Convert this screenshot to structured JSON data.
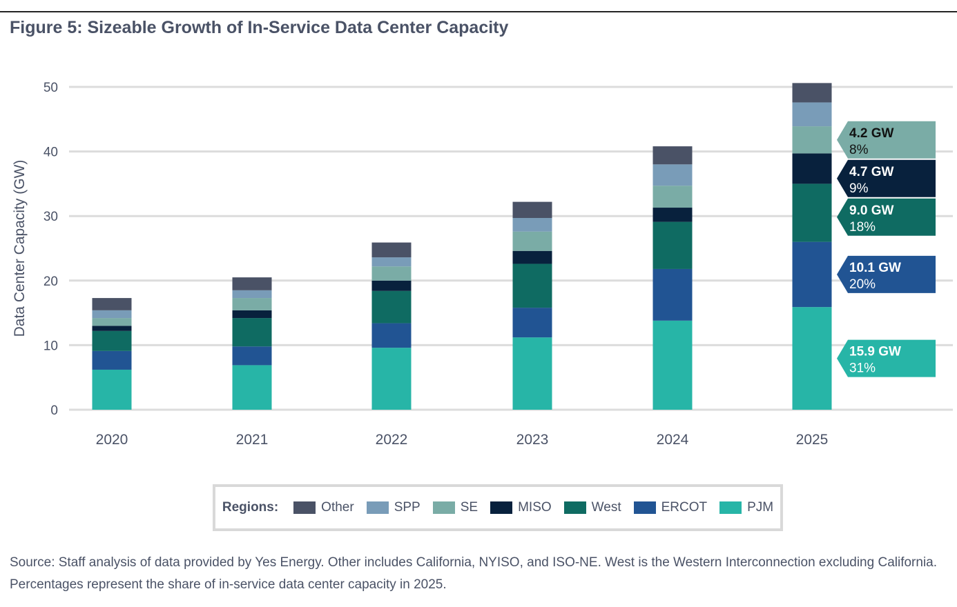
{
  "title": "Figure 5: Sizeable Growth of In-Service Data Center Capacity",
  "source": "Source: Staff analysis of data provided by Yes Energy. Other includes California, NYISO, and ISO-NE. West is the Western Interconnection excluding California. Percentages represent the share of in-service data center capacity in 2025.",
  "legend": {
    "label": "Regions:",
    "items": [
      "Other",
      "SPP",
      "SE",
      "MISO",
      "West",
      "ERCOT",
      "PJM"
    ]
  },
  "chart_data": {
    "type": "bar",
    "stacked": true,
    "title": "Figure 5: Sizeable Growth of In-Service Data Center Capacity",
    "xlabel": "",
    "ylabel": "Data Center Capacity (GW)",
    "ylim": [
      0,
      50
    ],
    "yticks": [
      0,
      10,
      20,
      30,
      40,
      50
    ],
    "grid": true,
    "legend_placement": "bottom",
    "categories": [
      "2020",
      "2021",
      "2022",
      "2023",
      "2024",
      "2025"
    ],
    "series": [
      {
        "name": "PJM",
        "color": "#27b5a7",
        "values": [
          6.2,
          6.9,
          9.6,
          11.2,
          13.8,
          15.9
        ]
      },
      {
        "name": "ERCOT",
        "color": "#215493",
        "values": [
          2.9,
          2.9,
          3.8,
          4.6,
          8.0,
          10.1
        ]
      },
      {
        "name": "West",
        "color": "#0f6b62",
        "values": [
          3.1,
          4.4,
          5.0,
          6.8,
          7.3,
          9.0
        ]
      },
      {
        "name": "MISO",
        "color": "#08213d",
        "values": [
          0.8,
          1.2,
          1.6,
          2.0,
          2.2,
          4.7
        ]
      },
      {
        "name": "SE",
        "color": "#7aaca6",
        "values": [
          1.2,
          1.9,
          2.2,
          3.0,
          3.4,
          4.2
        ]
      },
      {
        "name": "SPP",
        "color": "#799cb8",
        "values": [
          1.2,
          1.2,
          1.4,
          2.1,
          3.3,
          3.7
        ]
      },
      {
        "name": "Other",
        "color": "#4a5266",
        "values": [
          1.9,
          2.0,
          2.3,
          2.5,
          2.8,
          3.0
        ]
      }
    ],
    "annotations": [
      {
        "series": "SE",
        "category": "2025",
        "value": "4.2 GW",
        "share": "8%",
        "text_color": "#111111"
      },
      {
        "series": "MISO",
        "category": "2025",
        "value": "4.7 GW",
        "share": "9%",
        "text_color": "#ffffff"
      },
      {
        "series": "West",
        "category": "2025",
        "value": "9.0 GW",
        "share": "18%",
        "text_color": "#ffffff"
      },
      {
        "series": "ERCOT",
        "category": "2025",
        "value": "10.1 GW",
        "share": "20%",
        "text_color": "#ffffff"
      },
      {
        "series": "PJM",
        "category": "2025",
        "value": "15.9 GW",
        "share": "31%",
        "text_color": "#ffffff"
      }
    ]
  }
}
